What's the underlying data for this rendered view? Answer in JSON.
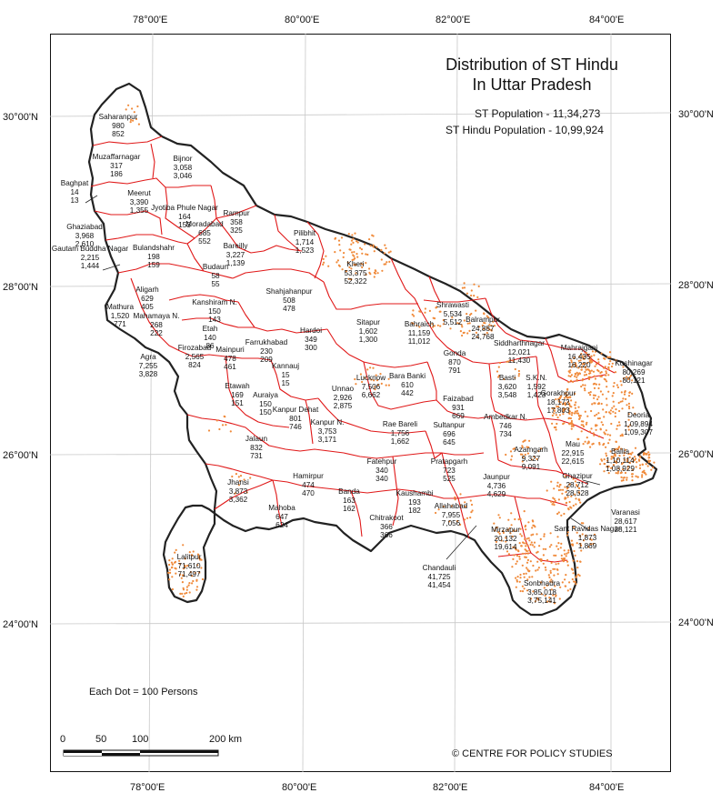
{
  "title": [
    "Distribution of ST Hindu",
    "In Uttar Pradesh"
  ],
  "stats": {
    "st_population": "ST Population - 11,34,273",
    "st_hindu_population": "ST Hindu Population - 10,99,924"
  },
  "axis": {
    "top": [
      "78°00'E",
      "80°00'E",
      "82°00'E",
      "84°00'E"
    ],
    "bottom": [
      "78°00'E",
      "80°00'E",
      "82°00'E",
      "84°00'E"
    ],
    "left": [
      "30°00'N",
      "28°00'N",
      "26°00'N",
      "24°00'N"
    ],
    "right": [
      "30°00'N",
      "28°00'N",
      "26°00'N",
      "24°00'N"
    ]
  },
  "legend": {
    "dot_note": "Each Dot = 100 Persons"
  },
  "scale_bar": {
    "labels": [
      "0",
      "50",
      "100",
      "200 km"
    ]
  },
  "credit": "© CENTRE FOR POLICY STUDIES",
  "colors": {
    "district_border": "#e01818",
    "state_border": "#222222",
    "dot": "#f08a3a",
    "grid": "#c8c8c8"
  },
  "districts": [
    {
      "name": "Saharanpur",
      "l1": "980",
      "l2": "852"
    },
    {
      "name": "Muzaffarnagar",
      "l1": "317",
      "l2": "186"
    },
    {
      "name": "Bijnor",
      "l1": "3,058",
      "l2": "3,046"
    },
    {
      "name": "Baghpat",
      "l1": "14",
      "l2": "13"
    },
    {
      "name": "Meerut",
      "l1": "3,390",
      "l2": "1,355"
    },
    {
      "name": "Ghaziabad",
      "l1": "3,968",
      "l2": "2,610"
    },
    {
      "name": "Jyotiba Phule Nagar",
      "l1": "164",
      "l2": "153"
    },
    {
      "name": "Moradabad",
      "l1": "685",
      "l2": "552"
    },
    {
      "name": "Rampur",
      "l1": "358",
      "l2": "325"
    },
    {
      "name": "Gautam Buddha Nagar",
      "l1": "2,215",
      "l2": "1,444"
    },
    {
      "name": "Bulandshahr",
      "l1": "198",
      "l2": "159"
    },
    {
      "name": "Bareilly",
      "l1": "3,227",
      "l2": "1,139"
    },
    {
      "name": "Pilibhit",
      "l1": "1,714",
      "l2": "1,523"
    },
    {
      "name": "Kheri",
      "l1": "53,375",
      "l2": "52,322"
    },
    {
      "name": "Budaun",
      "l1": "58",
      "l2": "55"
    },
    {
      "name": "Aligarh",
      "l1": "629",
      "l2": "405"
    },
    {
      "name": "Mathura",
      "l1": "1,520",
      "l2": "771"
    },
    {
      "name": "Shahjahanpur",
      "l1": "508",
      "l2": "478"
    },
    {
      "name": "Kanshiram N.",
      "l1": "150",
      "l2": "143"
    },
    {
      "name": "Mahamaya N.",
      "l1": "268",
      "l2": "222"
    },
    {
      "name": "Etah",
      "l1": "140",
      "l2": "86"
    },
    {
      "name": "Hardoi",
      "l1": "349",
      "l2": "300"
    },
    {
      "name": "Sitapur",
      "l1": "1,602",
      "l2": "1,300"
    },
    {
      "name": "Shrawasti",
      "l1": "5,534",
      "l2": "5,512"
    },
    {
      "name": "Bahraich",
      "l1": "11,159",
      "l2": "11,012"
    },
    {
      "name": "Balrampur",
      "l1": "24,887",
      "l2": "24,768"
    },
    {
      "name": "Siddharthnagar",
      "l1": "12,021",
      "l2": "11,430"
    },
    {
      "name": "Mahrajganj",
      "l1": "16,435",
      "l2": "16,220"
    },
    {
      "name": "Kushinagar",
      "l1": "80,269",
      "l2": "80,121"
    },
    {
      "name": "Agra",
      "l1": "7,255",
      "l2": "3,828"
    },
    {
      "name": "Firozabad",
      "l1": "2,565",
      "l2": "824"
    },
    {
      "name": "Mainpuri",
      "l1": "478",
      "l2": "461"
    },
    {
      "name": "Farrukhabad",
      "l1": "230",
      "l2": "209"
    },
    {
      "name": "Kannauj",
      "l1": "15",
      "l2": "15"
    },
    {
      "name": "Etawah",
      "l1": "169",
      "l2": "151"
    },
    {
      "name": "Auraiya",
      "l1": "150",
      "l2": "150"
    },
    {
      "name": "Lucknow",
      "l1": "7,506",
      "l2": "6,662"
    },
    {
      "name": "Bara Banki",
      "l1": "610",
      "l2": "442"
    },
    {
      "name": "Gonda",
      "l1": "870",
      "l2": "791"
    },
    {
      "name": "Basti",
      "l1": "3,620",
      "l2": "3,548"
    },
    {
      "name": "S.K.N.",
      "l1": "1,592",
      "l2": "1,423"
    },
    {
      "name": "Gorakhpur",
      "l1": "18,172",
      "l2": "17,803"
    },
    {
      "name": "Deoria",
      "l1": "1,09,894",
      "l2": "1,09,307"
    },
    {
      "name": "Unnao",
      "l1": "2,926",
      "l2": "2,875"
    },
    {
      "name": "Faizabad",
      "l1": "931",
      "l2": "669"
    },
    {
      "name": "Ambedkar N.",
      "l1": "746",
      "l2": "734"
    },
    {
      "name": "Kanpur Dehat",
      "l1": "801",
      "l2": "746"
    },
    {
      "name": "Kanpur N.",
      "l1": "3,753",
      "l2": "3,171"
    },
    {
      "name": "Rae Bareli",
      "l1": "1,756",
      "l2": "1,662"
    },
    {
      "name": "Sultanpur",
      "l1": "696",
      "l2": "645"
    },
    {
      "name": "Azamgarh",
      "l1": "9,327",
      "l2": "9,091"
    },
    {
      "name": "Mau",
      "l1": "22,915",
      "l2": "22,615"
    },
    {
      "name": "Ballia",
      "l1": "1,10,114",
      "l2": "1,08,929"
    },
    {
      "name": "Jalaun",
      "l1": "832",
      "l2": "731"
    },
    {
      "name": "Fatehpur",
      "l1": "340",
      "l2": "340"
    },
    {
      "name": "Pratapgarh",
      "l1": "723",
      "l2": "525"
    },
    {
      "name": "Jaunpur",
      "l1": "4,736",
      "l2": "4,629"
    },
    {
      "name": "Ghazipur",
      "l1": "28,712",
      "l2": "28,528"
    },
    {
      "name": "Jhansi",
      "l1": "3,873",
      "l2": "3,362"
    },
    {
      "name": "Hamirpur",
      "l1": "474",
      "l2": "470"
    },
    {
      "name": "Banda",
      "l1": "163",
      "l2": "162"
    },
    {
      "name": "Kaushambi",
      "l1": "193",
      "l2": "182"
    },
    {
      "name": "Allahabad",
      "l1": "7,955",
      "l2": "7,056"
    },
    {
      "name": "Varanasi",
      "l1": "28,617",
      "l2": "28,121"
    },
    {
      "name": "Mahoba",
      "l1": "647",
      "l2": "624"
    },
    {
      "name": "Chitrakoot",
      "l1": "366",
      "l2": "366"
    },
    {
      "name": "Mirzapur",
      "l1": "20,132",
      "l2": "19,614"
    },
    {
      "name": "Sant Ravidas Nagar",
      "l1": "1,873",
      "l2": "1,869"
    },
    {
      "name": "Lalitpur",
      "l1": "71,610",
      "l2": "71,497"
    },
    {
      "name": "Chandauli",
      "l1": "41,725",
      "l2": "41,454"
    },
    {
      "name": "Sonbhadra",
      "l1": "3,85,018",
      "l2": "3,75,141"
    }
  ]
}
